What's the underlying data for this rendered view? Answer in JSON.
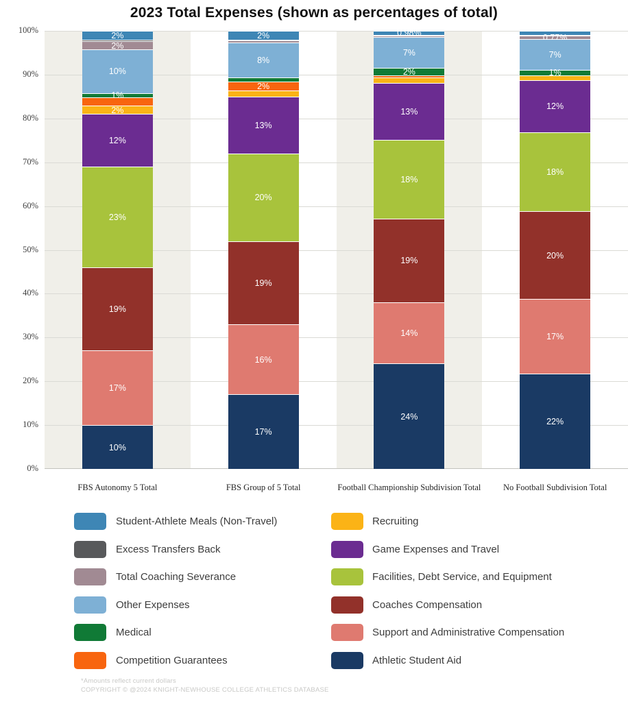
{
  "chart_data": {
    "type": "stacked-bar",
    "title": "2023 Total Expenses (shown as percentages of total)",
    "xlabel": "",
    "ylabel": "",
    "ylim": [
      0,
      100
    ],
    "ytick_step": 10,
    "ytick_suffix": "%",
    "grid": true,
    "legend_position": "bottom",
    "legend_columns": 2,
    "band_colors": [
      "#f0efe9",
      "#ffffff",
      "#f0efe9",
      "#ffffff"
    ],
    "categories": [
      "FBS Autonomy 5 Total",
      "FBS Group of 5 Total",
      "Football Championship Subdivision Total",
      "No Football Subdivision Total"
    ],
    "series": [
      {
        "name": "Student-Athlete Meals (Non-Travel)",
        "color": "#3e86b5",
        "values": [
          2,
          2,
          0.98,
          1.03
        ],
        "labels": [
          "2%",
          "2%",
          "0.98%",
          ""
        ]
      },
      {
        "name": "Excess Transfers Back",
        "color": "#58595b",
        "values": [
          0.4,
          0.2,
          0.12,
          0.1
        ],
        "labels": [
          "",
          "",
          "",
          ""
        ]
      },
      {
        "name": "Total Coaching Severance",
        "color": "#a18a93",
        "values": [
          1.8,
          0.4,
          0.3,
          0.77
        ],
        "labels": [
          "2%",
          "",
          "",
          "0.77%"
        ]
      },
      {
        "name": "Other Expenses",
        "color": "#7eb0d5",
        "values": [
          10,
          8,
          7,
          7
        ],
        "labels": [
          "10%",
          "8%",
          "7%",
          "7%"
        ]
      },
      {
        "name": "Medical",
        "color": "#107a36",
        "values": [
          1,
          1,
          1.8,
          1.2
        ],
        "labels": [
          "1%",
          "",
          "2%",
          "1%"
        ]
      },
      {
        "name": "Competition Guarantees",
        "color": "#f8650f",
        "values": [
          1.8,
          2,
          0.5,
          0
        ],
        "labels": [
          "",
          "2%",
          "",
          ""
        ]
      },
      {
        "name": "Recruiting",
        "color": "#fbb316",
        "values": [
          2,
          1.4,
          1.2,
          1.1
        ],
        "labels": [
          "2%",
          "",
          "",
          ""
        ]
      },
      {
        "name": "Game Expenses and Travel",
        "color": "#6b2c91",
        "values": [
          12,
          13,
          13,
          12
        ],
        "labels": [
          "12%",
          "13%",
          "13%",
          "12%"
        ]
      },
      {
        "name": "Facilities, Debt Service, and Equipment",
        "color": "#a8c33c",
        "values": [
          23,
          20,
          18,
          18
        ],
        "labels": [
          "23%",
          "20%",
          "18%",
          "18%"
        ]
      },
      {
        "name": "Coaches Compensation",
        "color": "#92312a",
        "values": [
          19,
          19,
          19,
          20
        ],
        "labels": [
          "19%",
          "19%",
          "19%",
          "20%"
        ]
      },
      {
        "name": "Support and Administrative Compensation",
        "color": "#df7a70",
        "values": [
          17,
          16,
          14,
          17
        ],
        "labels": [
          "17%",
          "16%",
          "14%",
          "17%"
        ]
      },
      {
        "name": "Athletic Student Aid",
        "color": "#1a3a64",
        "values": [
          10,
          17,
          24.1,
          21.8
        ],
        "labels": [
          "10%",
          "17%",
          "24%",
          "22%"
        ]
      }
    ]
  },
  "footer": {
    "note": "*Amounts reflect current dollars",
    "copyright": "COPYRIGHT © @2024 KNIGHT-NEWHOUSE COLLEGE ATHLETICS DATABASE"
  }
}
